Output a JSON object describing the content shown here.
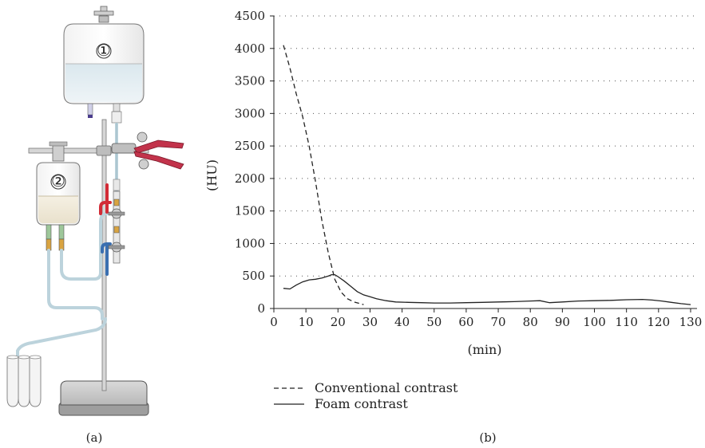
{
  "panels": {
    "a_label": "(a)",
    "b_label": "(b)"
  },
  "illustration": {
    "bag1_label": "①",
    "bag2_label": "②",
    "colors": {
      "clamp": "#c2334b",
      "red_tube": "#d22b36",
      "blue_tube": "#3a6fb0",
      "tube": "#cfe3ec",
      "base": "#c8c8c8"
    }
  },
  "chart_data": {
    "type": "line",
    "xlabel": "(min)",
    "ylabel": "(HU)",
    "xlim": [
      0,
      132
    ],
    "ylim": [
      0,
      4500
    ],
    "xticks": [
      0,
      10,
      20,
      30,
      40,
      50,
      60,
      70,
      80,
      90,
      100,
      110,
      120,
      130
    ],
    "yticks": [
      0,
      500,
      1000,
      1500,
      2000,
      2500,
      3000,
      3500,
      4000,
      4500
    ],
    "grid": "horizontal-dotted",
    "legend_position": "bottom-left",
    "series": [
      {
        "name": "Conventional contrast",
        "style": "dashed",
        "color": "#222222",
        "points": [
          [
            3,
            4050
          ],
          [
            5,
            3700
          ],
          [
            7,
            3300
          ],
          [
            9,
            2950
          ],
          [
            11,
            2500
          ],
          [
            13,
            1950
          ],
          [
            15,
            1350
          ],
          [
            17,
            850
          ],
          [
            19,
            450
          ],
          [
            21,
            250
          ],
          [
            23,
            150
          ],
          [
            25,
            100
          ],
          [
            28,
            60
          ]
        ]
      },
      {
        "name": "Foam contrast",
        "style": "solid",
        "color": "#222222",
        "points": [
          [
            3,
            310
          ],
          [
            5,
            300
          ],
          [
            7,
            360
          ],
          [
            9,
            410
          ],
          [
            11,
            440
          ],
          [
            13,
            450
          ],
          [
            15,
            470
          ],
          [
            17,
            500
          ],
          [
            18,
            520
          ],
          [
            19,
            520
          ],
          [
            20,
            490
          ],
          [
            22,
            420
          ],
          [
            24,
            340
          ],
          [
            26,
            260
          ],
          [
            28,
            210
          ],
          [
            30,
            180
          ],
          [
            32,
            150
          ],
          [
            35,
            120
          ],
          [
            38,
            100
          ],
          [
            42,
            95
          ],
          [
            46,
            90
          ],
          [
            50,
            85
          ],
          [
            55,
            85
          ],
          [
            60,
            90
          ],
          [
            65,
            95
          ],
          [
            70,
            100
          ],
          [
            75,
            105
          ],
          [
            80,
            115
          ],
          [
            83,
            120
          ],
          [
            86,
            90
          ],
          [
            90,
            100
          ],
          [
            95,
            115
          ],
          [
            100,
            120
          ],
          [
            105,
            125
          ],
          [
            110,
            135
          ],
          [
            115,
            140
          ],
          [
            118,
            130
          ],
          [
            121,
            115
          ],
          [
            124,
            95
          ],
          [
            127,
            75
          ],
          [
            130,
            60
          ]
        ]
      }
    ]
  }
}
